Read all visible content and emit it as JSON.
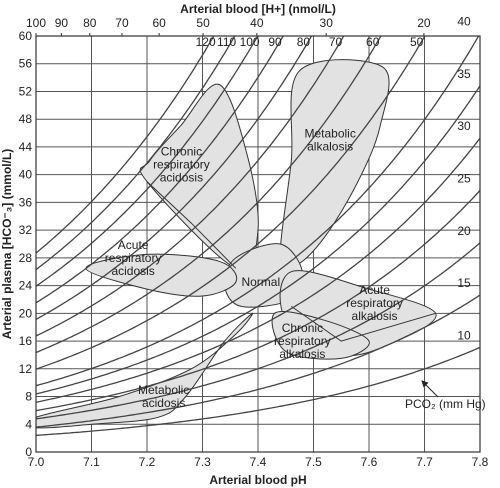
{
  "chart_data": {
    "type": "line",
    "xlabel": "Arterial blood pH",
    "ylabel": "Arterial plasma [HCO⁻₃] (mmol/L)",
    "top_axis_label": "Arterial blood [H+] (nmol/L)",
    "xlim": [
      7.0,
      7.8
    ],
    "ylim": [
      0,
      60
    ],
    "x_ticks": [
      7.0,
      7.1,
      7.2,
      7.3,
      7.4,
      7.5,
      7.6,
      7.7,
      7.8
    ],
    "x_tick_labels": [
      "7.0",
      "7.1",
      "7.2",
      "7.3",
      "7.4",
      "7.5",
      "7.6",
      "7.7",
      "7.8"
    ],
    "y_ticks": [
      0,
      4,
      8,
      12,
      16,
      20,
      24,
      28,
      32,
      36,
      40,
      44,
      48,
      52,
      56,
      60
    ],
    "y_tick_labels": [
      "0",
      "4",
      "8",
      "12",
      "16",
      "20",
      "24",
      "28",
      "32",
      "36",
      "40",
      "44",
      "48",
      "52",
      "56",
      "60"
    ],
    "top_ticks_h": [
      100,
      90,
      80,
      70,
      60,
      50,
      40,
      30,
      20
    ],
    "top_tick_labels": [
      "100",
      "90",
      "80",
      "70",
      "60",
      "50",
      "40",
      "30",
      "20"
    ],
    "grid": true,
    "isobar_legend": "PCO₂ (mm Hg)",
    "isobars": [
      {
        "pco2": 10,
        "label": "10"
      },
      {
        "pco2": 15,
        "label": "15"
      },
      {
        "pco2": 20,
        "label": "20"
      },
      {
        "pco2": 25,
        "label": "25"
      },
      {
        "pco2": 30,
        "label": "30"
      },
      {
        "pco2": 35,
        "label": "35"
      },
      {
        "pco2": 40,
        "label": "40"
      },
      {
        "pco2": 50,
        "label": "50"
      },
      {
        "pco2": 60,
        "label": "60"
      },
      {
        "pco2": 70,
        "label": "70"
      },
      {
        "pco2": 80,
        "label": "80"
      },
      {
        "pco2": 90,
        "label": "90"
      },
      {
        "pco2": 100,
        "label": "100"
      },
      {
        "pco2": 110,
        "label": "110"
      },
      {
        "pco2": 120,
        "label": "120"
      }
    ],
    "regions": [
      {
        "name": "Chronic respiratory acidosis",
        "label_lines": [
          "Chronic",
          "respiratory",
          "acidosis"
        ],
        "label_at": [
          7.262,
          41.5
        ],
        "points": [
          [
            7.205,
            42
          ],
          [
            7.26,
            47
          ],
          [
            7.33,
            53
          ],
          [
            7.38,
            43
          ],
          [
            7.4,
            32
          ],
          [
            7.36,
            26.5
          ],
          [
            7.2,
            39
          ]
        ]
      },
      {
        "name": "Metabolic alkalosis",
        "label_lines": [
          "Metabolic",
          "alkalosis"
        ],
        "label_at": [
          7.53,
          45
        ],
        "points": [
          [
            7.475,
            55
          ],
          [
            7.625,
            55.5
          ],
          [
            7.62,
            47
          ],
          [
            7.58,
            39
          ],
          [
            7.52,
            31
          ],
          [
            7.47,
            27
          ],
          [
            7.44,
            28
          ],
          [
            7.46,
            42
          ]
        ]
      },
      {
        "name": "Normal",
        "label_lines": [
          "Normal"
        ],
        "label_at": [
          7.405,
          24.5
        ],
        "points": [
          [
            7.36,
            28
          ],
          [
            7.44,
            30
          ],
          [
            7.48,
            26
          ],
          [
            7.46,
            22
          ],
          [
            7.37,
            21
          ],
          [
            7.34,
            24
          ]
        ]
      },
      {
        "name": "Acute respiratory acidosis",
        "label_lines": [
          "Acute",
          "respiratory",
          "acidosis"
        ],
        "label_at": [
          7.175,
          28
        ],
        "points": [
          [
            7.09,
            26.5
          ],
          [
            7.2,
            28.5
          ],
          [
            7.33,
            27.5
          ],
          [
            7.36,
            24.5
          ],
          [
            7.3,
            22.5
          ],
          [
            7.2,
            23.5
          ]
        ]
      },
      {
        "name": "Acute respiratory alkalosis",
        "label_lines": [
          "Acute",
          "respiratory",
          "alkalosis"
        ],
        "label_at": [
          7.61,
          21.5
        ],
        "points": [
          [
            7.46,
            26
          ],
          [
            7.6,
            23.5
          ],
          [
            7.72,
            20
          ],
          [
            7.65,
            16
          ],
          [
            7.55,
            14
          ],
          [
            7.45,
            19
          ]
        ]
      },
      {
        "name": "Chronic respiratory alkalosis",
        "label_lines": [
          "Chronic",
          "respiratory",
          "alkalosis"
        ],
        "label_at": [
          7.48,
          16
        ],
        "points": [
          [
            7.43,
            20
          ],
          [
            7.52,
            19
          ],
          [
            7.6,
            16
          ],
          [
            7.55,
            13.5
          ],
          [
            7.45,
            14.5
          ]
        ]
      },
      {
        "name": "Metabolic acidosis",
        "label_lines": [
          "Metabolic",
          "acidosis"
        ],
        "label_at": [
          7.23,
          8
        ],
        "points": [
          [
            7.0,
            5
          ],
          [
            7.15,
            8
          ],
          [
            7.28,
            12
          ],
          [
            7.36,
            17
          ],
          [
            7.39,
            20
          ],
          [
            7.34,
            16
          ],
          [
            7.27,
            8
          ],
          [
            7.22,
            5
          ],
          [
            7.1,
            4
          ],
          [
            7.0,
            3.5
          ]
        ]
      }
    ],
    "boundaries": [
      {
        "name": "acidosis-band-edge",
        "points": [
          [
            7.2,
            39
          ],
          [
            7.28,
            33
          ],
          [
            7.36,
            26.5
          ]
        ]
      },
      {
        "name": "alkalosis-tail-to-15",
        "points": [
          [
            7.46,
            21
          ],
          [
            7.55,
            16
          ],
          [
            7.72,
            20
          ]
        ]
      }
    ]
  }
}
